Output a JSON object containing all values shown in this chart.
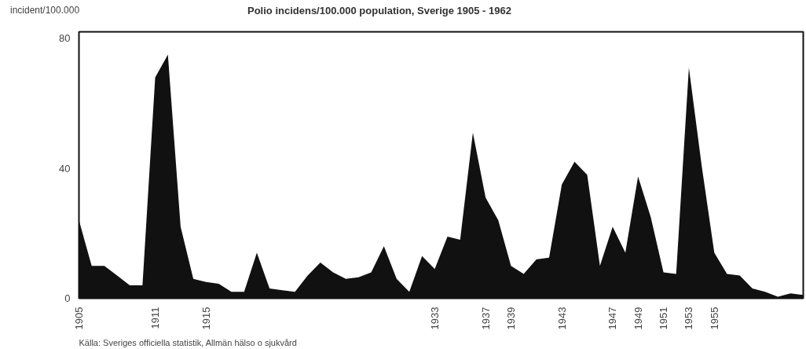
{
  "chart_data": {
    "type": "area",
    "title": "Polio incidens/100.000 population, Sverige 1905 - 1962",
    "ylabel": "incident/100.000",
    "annotations": [
      "Källa: Sveriges officiella statistik, Allmän hälso o sjukvård"
    ],
    "x": [
      1905,
      1906,
      1907,
      1908,
      1909,
      1910,
      1911,
      1912,
      1913,
      1914,
      1915,
      1916,
      1917,
      1918,
      1919,
      1920,
      1921,
      1922,
      1923,
      1924,
      1925,
      1926,
      1927,
      1928,
      1929,
      1930,
      1931,
      1932,
      1933,
      1934,
      1935,
      1936,
      1937,
      1938,
      1939,
      1940,
      1941,
      1942,
      1943,
      1944,
      1945,
      1946,
      1947,
      1948,
      1949,
      1950,
      1951,
      1952,
      1953,
      1954,
      1955,
      1956,
      1957,
      1958,
      1959,
      1960,
      1961,
      1962
    ],
    "series": [
      {
        "color": "#111111",
        "values": [
          24,
          10,
          10,
          7,
          4,
          4,
          68,
          75,
          22,
          6,
          5,
          4.5,
          2,
          2,
          14,
          3,
          2.5,
          2,
          7,
          11,
          8,
          6,
          6.5,
          8,
          16,
          6,
          2,
          13,
          9,
          19,
          18,
          51,
          31,
          24,
          10,
          7.5,
          12,
          12.5,
          35,
          42,
          38,
          10,
          22,
          14,
          37.5,
          25,
          8,
          7.5,
          71,
          41,
          14,
          7.5,
          7,
          3,
          2,
          0.5,
          1.5,
          1
        ]
      }
    ],
    "xlim": [
      1905,
      1962
    ],
    "xticks": [
      1905,
      1911,
      1915,
      1933,
      1937,
      1939,
      1943,
      1947,
      1949,
      1951,
      1953,
      1955
    ],
    "ylim": [
      0,
      82
    ],
    "yticks": [
      0,
      40,
      80
    ],
    "grid": false
  }
}
